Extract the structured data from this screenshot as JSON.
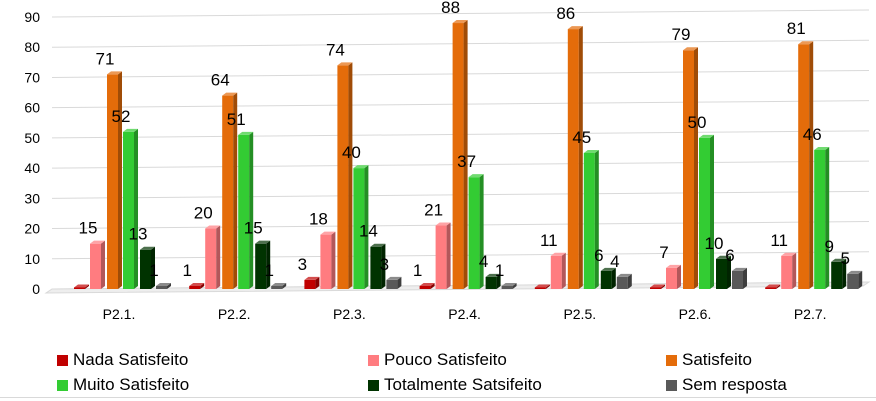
{
  "chart_data": {
    "type": "bar",
    "categories": [
      "P2.1.",
      "P2.2.",
      "P2.3.",
      "P2.4.",
      "P2.5.",
      "P2.6.",
      "P2.7."
    ],
    "ylim": [
      0,
      90
    ],
    "yticks": [
      0,
      10,
      20,
      30,
      40,
      50,
      60,
      70,
      80,
      90
    ],
    "grid": true,
    "legend_position": "bottom",
    "series": [
      {
        "name": "Nada Satisfeito",
        "color": "#c00000",
        "values": [
          0,
          1,
          3,
          1,
          0,
          0,
          0
        ],
        "labels": [
          "",
          "1",
          "3",
          "1",
          "",
          "",
          ""
        ]
      },
      {
        "name": "Pouco Satisfeito",
        "color": "#ff7c80",
        "values": [
          15,
          20,
          18,
          21,
          11,
          7,
          11
        ],
        "labels": [
          "15",
          "20",
          "18",
          "21",
          "11",
          "7",
          "11"
        ]
      },
      {
        "name": "Satisfeito",
        "color": "#e46c0a",
        "values": [
          71,
          64,
          74,
          88,
          86,
          79,
          81
        ],
        "labels": [
          "71",
          "64",
          "74",
          "88",
          "86",
          "79",
          "81"
        ]
      },
      {
        "name": "Muito Satisfeito",
        "color": "#33cc33",
        "values": [
          52,
          51,
          40,
          37,
          45,
          50,
          46
        ],
        "labels": [
          "52",
          "51",
          "40",
          "37",
          "45",
          "50",
          "46"
        ]
      },
      {
        "name": "Totalmente Satsifeito",
        "color": "#003300",
        "values": [
          13,
          15,
          14,
          4,
          6,
          10,
          9
        ],
        "labels": [
          "13",
          "15",
          "14",
          "4",
          "6",
          "10",
          "9"
        ]
      },
      {
        "name": "Sem resposta",
        "color": "#595959",
        "values": [
          1,
          1,
          3,
          1,
          4,
          6,
          5
        ],
        "labels": [
          "1",
          "1",
          "3",
          "1",
          "4",
          "6",
          "5"
        ]
      }
    ]
  }
}
